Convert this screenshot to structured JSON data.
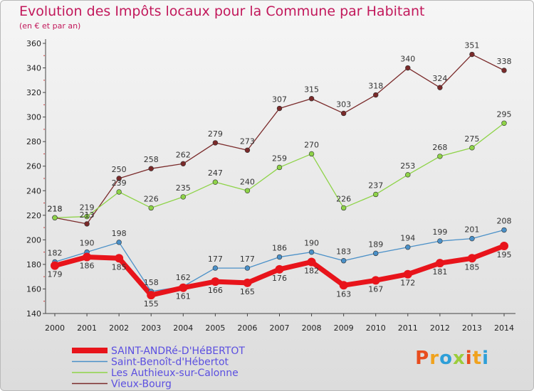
{
  "header": {
    "title": "Evolution des Impôts locaux pour la Commune par Habitant",
    "subtitle": "(en € et par an)"
  },
  "logo": {
    "text": "Proxiti",
    "colors": [
      "#e84c1e",
      "#f0a21e",
      "#2e9fd8",
      "#9ccc3b"
    ]
  },
  "chart_data": {
    "type": "line",
    "x": [
      2000,
      2001,
      2002,
      2003,
      2004,
      2005,
      2006,
      2007,
      2008,
      2009,
      2010,
      2011,
      2012,
      2013,
      2014
    ],
    "ylim": [
      140,
      360
    ],
    "yticks": [
      140,
      160,
      180,
      200,
      220,
      240,
      260,
      280,
      300,
      320,
      340,
      360
    ],
    "grid": false,
    "legend_position": "bottom-left",
    "series": [
      {
        "name": "SAINT-ANDRé-D'HéBERTOT",
        "color": "#e8141b",
        "style": "thick",
        "values": [
          179,
          186,
          185,
          155,
          161,
          166,
          165,
          176,
          182,
          163,
          167,
          172,
          181,
          185,
          195
        ]
      },
      {
        "name": "Saint-Benoît-d'Hébertot",
        "color": "#4a90c8",
        "style": "thin",
        "values": [
          182,
          190,
          198,
          158,
          162,
          177,
          177,
          186,
          190,
          183,
          189,
          194,
          199,
          201,
          208
        ]
      },
      {
        "name": "Les Authieux-sur-Calonne",
        "color": "#8ed348",
        "style": "thin",
        "values": [
          218,
          219,
          239,
          226,
          235,
          247,
          240,
          259,
          270,
          226,
          237,
          253,
          268,
          275,
          295
        ]
      },
      {
        "name": "Vieux-Bourg",
        "color": "#7a2a2a",
        "style": "thin",
        "values": [
          218,
          213,
          250,
          258,
          262,
          279,
          273,
          307,
          315,
          303,
          318,
          340,
          324,
          351,
          338
        ]
      }
    ]
  }
}
